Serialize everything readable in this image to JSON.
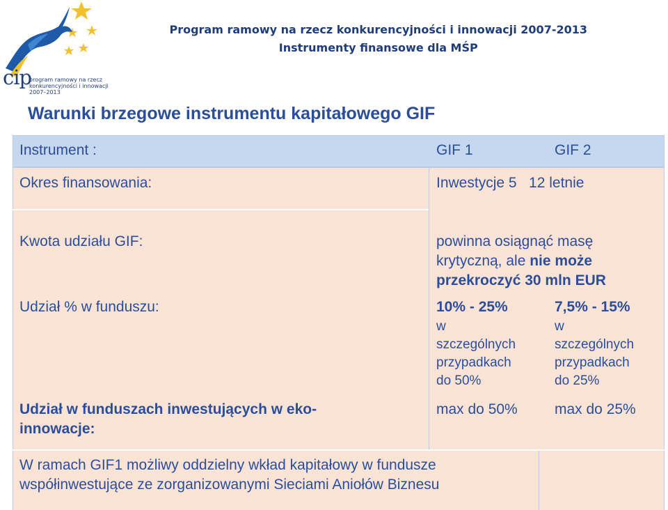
{
  "logo": {
    "acronym": "cip",
    "lines": [
      "program ramowy na rzecz",
      "konkurencyjności i innowacji",
      "2007–2013"
    ]
  },
  "header": {
    "line1": "Program ramowy na rzecz konkurencyjności i innowacji 2007-2013",
    "line2": "Instrumenty finansowe dla MŚP"
  },
  "title": "Warunki brzegowe instrumentu kapitałowego GIF",
  "table": {
    "instrument_label": "Instrument :",
    "gif1": "GIF 1",
    "gif2": "GIF 2",
    "okres_label": "Okres finansowania:",
    "okres_value": "Inwestycje 5   12 letnie",
    "kwota_label": "Kwota udziału GIF:",
    "kwota_value": {
      "line1": "powinna osiągnąć masę",
      "line2_plain": "krytyczną, ale ",
      "line2_bold": "nie może",
      "line3": "przekroczyć 30 mln EUR"
    },
    "udzial_label": "Udział % w funduszu:",
    "udzial_gif1": {
      "main": "10% - 25%",
      "l1": "w",
      "l2": "szczególnych",
      "l3": "przypadkach",
      "l4": "do 50%"
    },
    "udzial_gif2": {
      "main": "7,5% - 15%",
      "l1": "w",
      "l2": "szczególnych",
      "l3": "przypadkach",
      "l4": "do 25%"
    },
    "eko_label_1": "Udział w funduszach inwestujących w eko-",
    "eko_label_2": "innowacje:",
    "eko_gif1": "max do 50%",
    "eko_gif2": "max do 25%",
    "note_line1": "W  ramach GIF1 możliwy oddzielny wkład kapitałowy w fundusze",
    "note_line2": "współinwestujące ze zorganizowanymi Sieciami Aniołów Biznesu"
  },
  "colors": {
    "header_row": "#c6d8f0",
    "body": "#fbe4d5",
    "text": "#2a4d9c",
    "title": "#2a4d9c",
    "border": "#b9cbe6"
  }
}
